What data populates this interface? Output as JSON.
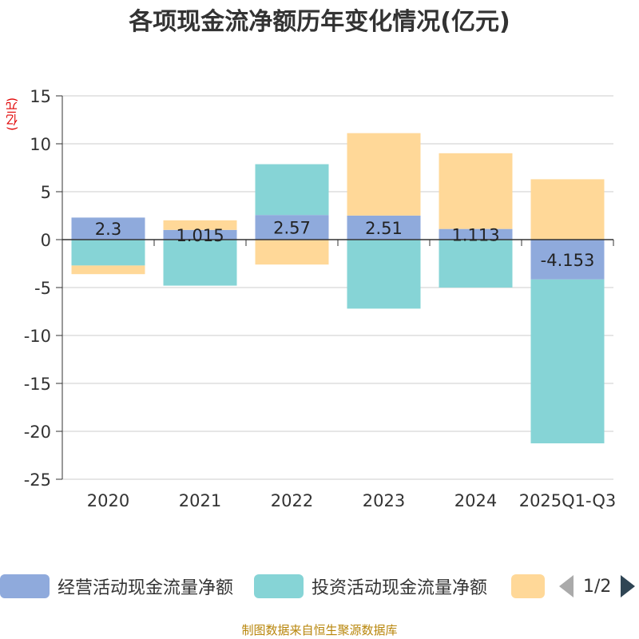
{
  "title": "各项现金流净额历年变化情况(亿元)",
  "unit_label": "(亿元)",
  "legend": {
    "items": [
      {
        "label": "经营活动现金流量净额",
        "color": "#8FAADC"
      },
      {
        "label": "投资活动现金流量净额",
        "color": "#86D4D6"
      },
      {
        "label": "",
        "color": "#FFD898"
      }
    ],
    "page": "1/2"
  },
  "source": "制图数据来自恒生聚源数据库",
  "chart_data": {
    "type": "bar",
    "stacked": true,
    "categories": [
      "2020",
      "2021",
      "2022",
      "2023",
      "2024",
      "2025Q1-Q3"
    ],
    "series": [
      {
        "name": "经营活动现金流量净额",
        "color": "#8FAADC",
        "values": [
          2.3,
          1.015,
          2.57,
          2.51,
          1.113,
          -4.153
        ],
        "labels": [
          "2.3",
          "1.015",
          "2.57",
          "2.51",
          "1.113",
          "-4.153"
        ]
      },
      {
        "name": "投资活动现金流量净额",
        "color": "#86D4D6",
        "values": [
          -2.7,
          -4.8,
          5.3,
          -7.2,
          -5.0,
          -17.1
        ]
      },
      {
        "name": "",
        "color": "#FFD898",
        "values": [
          -0.9,
          1.0,
          -2.6,
          8.6,
          7.9,
          6.3
        ]
      }
    ],
    "ylim": [
      -25,
      15
    ],
    "yticks": [
      15,
      10,
      5,
      0,
      -5,
      -10,
      -15,
      -20,
      -25
    ],
    "grid": true,
    "legend_position": "bottom"
  }
}
